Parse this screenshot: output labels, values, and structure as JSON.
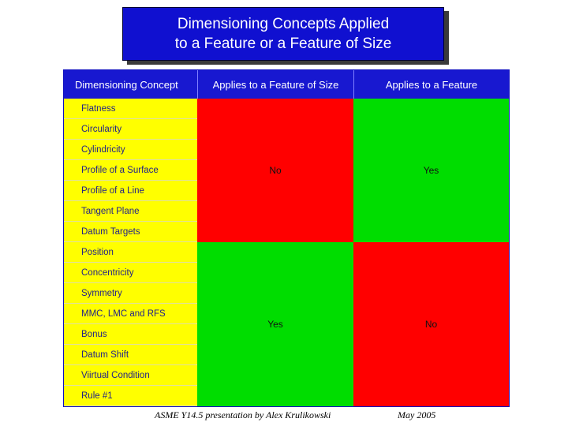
{
  "title": {
    "line1": "Dimensioning Concepts Applied",
    "line2": "to a Feature or a Feature of Size"
  },
  "table": {
    "headers": [
      "Dimensioning Concept",
      "Applies to a Feature of Size",
      "Applies to a Feature"
    ],
    "concepts": [
      "Flatness",
      "Circularity",
      "Cylindricity",
      "Profile of a Surface",
      "Profile of a Line",
      "Tangent Plane",
      "Datum Targets",
      "Position",
      "Concentricity",
      "Symmetry",
      "MMC, LMC and RFS",
      "Bonus",
      "Datum Shift",
      "Viirtual Condition",
      "Rule #1"
    ],
    "top_group": {
      "feature_of_size": "No",
      "feature": "Yes"
    },
    "bottom_group": {
      "feature_of_size": "Yes",
      "feature": "No"
    }
  },
  "colors": {
    "title_bg": "#1010d0",
    "header_bg": "#1818d0",
    "concept_bg": "#ffff00",
    "no_cell": "#ff0000",
    "yes_cell": "#00dd00"
  },
  "footer": {
    "presentation": "ASME Y14.5 presentation by Alex Krulikowski",
    "date": "May 2005"
  }
}
